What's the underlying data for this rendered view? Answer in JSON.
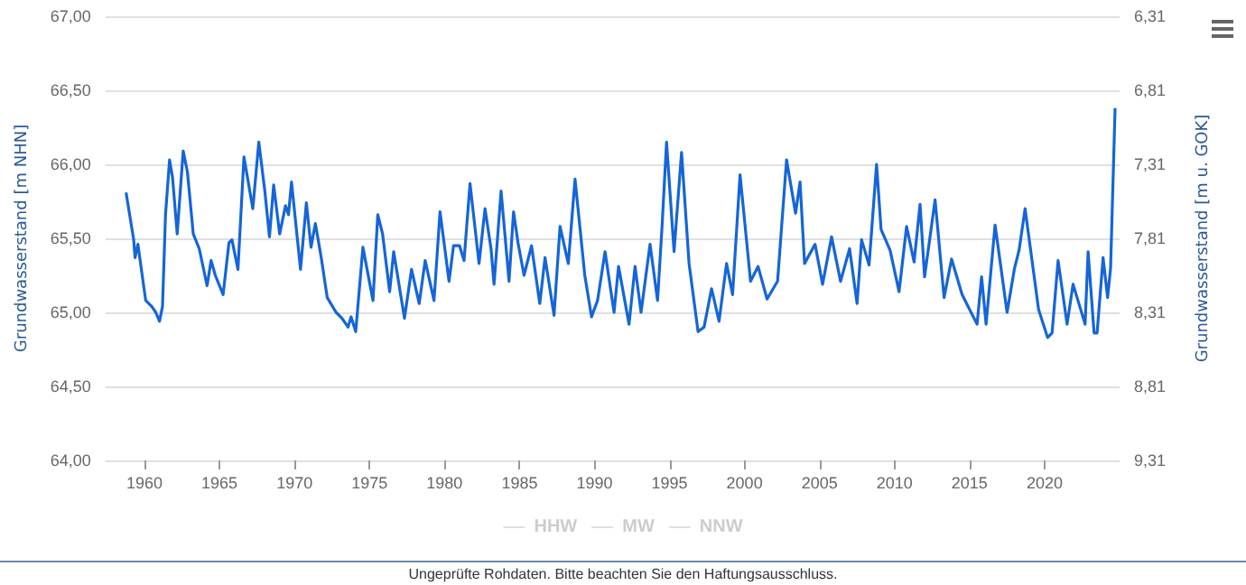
{
  "chart_data": {
    "type": "line",
    "ylabel": "Grundwasserstand [m NHN]",
    "y2label": "Grundwasserstand [m u. GOK]",
    "annotations": [
      "Ungeprüfte Rohdaten. Bitte beachten Sie den Haftungsausschluss."
    ],
    "xlim": [
      1957.4,
      2025
    ],
    "xticks": [
      1960,
      1965,
      1970,
      1975,
      1980,
      1985,
      1990,
      1995,
      2000,
      2005,
      2010,
      2015,
      2020
    ],
    "ylim": [
      64,
      67
    ],
    "yticks": [
      {
        "value": 64,
        "label": "64,00"
      },
      {
        "value": 64.5,
        "label": "64,50"
      },
      {
        "value": 65,
        "label": "65,00"
      },
      {
        "value": 65.5,
        "label": "65,50"
      },
      {
        "value": 66,
        "label": "66,00"
      },
      {
        "value": 66.5,
        "label": "66,50"
      },
      {
        "value": 67,
        "label": "67,00"
      }
    ],
    "y2lim": [
      9.31,
      6.31
    ],
    "y2ticks": [
      {
        "value": 9.31,
        "label": "9,31"
      },
      {
        "value": 8.81,
        "label": "8,81"
      },
      {
        "value": 8.31,
        "label": "8,31"
      },
      {
        "value": 7.81,
        "label": "7,81"
      },
      {
        "value": 7.31,
        "label": "7,31"
      },
      {
        "value": 6.81,
        "label": "6,81"
      },
      {
        "value": 6.31,
        "label": "6,31"
      }
    ],
    "grid": "y",
    "legend": "bottom",
    "marker": "none",
    "line_style": "solid",
    "series": [
      {
        "color": "#1565d8",
        "x": [
          1958.77,
          1959.28,
          1959.37,
          1959.56,
          1960.08,
          1960.48,
          1960.75,
          1961.0,
          1961.2,
          1961.4,
          1961.67,
          1961.87,
          1962.18,
          1962.58,
          1962.86,
          1963.25,
          1963.65,
          1964.17,
          1964.44,
          1964.72,
          1965.24,
          1965.63,
          1965.83,
          1966.23,
          1966.63,
          1967.22,
          1967.62,
          1968.02,
          1968.33,
          1968.61,
          1969.01,
          1969.4,
          1969.6,
          1969.8,
          1970.4,
          1970.79,
          1971.1,
          1971.39,
          1971.78,
          1972.18,
          1972.77,
          1973.17,
          1973.57,
          1973.77,
          1974.08,
          1974.56,
          1975.23,
          1975.55,
          1975.87,
          1976.34,
          1976.61,
          1977.33,
          1977.8,
          1978.31,
          1978.71,
          1979.3,
          1979.7,
          1980.3,
          1980.6,
          1981.0,
          1981.3,
          1981.7,
          1982.3,
          1982.7,
          1983.1,
          1983.3,
          1983.77,
          1984.3,
          1984.6,
          1984.9,
          1985.3,
          1985.8,
          1986.35,
          1986.7,
          1987.3,
          1987.7,
          1988.25,
          1988.7,
          1989.35,
          1989.8,
          1990.2,
          1990.7,
          1991.3,
          1991.6,
          1992.3,
          1992.7,
          1993.1,
          1993.7,
          1994.2,
          1994.5,
          1994.8,
          1995.3,
          1995.8,
          1996.3,
          1996.9,
          1997.3,
          1997.8,
          1998.3,
          1998.8,
          1999.2,
          1999.7,
          2000.4,
          2000.9,
          2001.5,
          2002.2,
          2002.8,
          2003.4,
          2003.7,
          2004.0,
          2004.7,
          2005.2,
          2005.8,
          2006.4,
          2007.0,
          2007.5,
          2007.8,
          2008.3,
          2008.8,
          2009.1,
          2009.7,
          2010.3,
          2010.8,
          2011.3,
          2011.7,
          2012.0,
          2012.7,
          2013.3,
          2013.8,
          2014.5,
          2015.0,
          2015.5,
          2015.8,
          2016.1,
          2016.7,
          2017.5,
          2018.0,
          2018.3,
          2018.7,
          2019.6,
          2020.2,
          2020.5,
          2020.9,
          2021.5,
          2021.9,
          2022.7,
          2022.9,
          2023.3,
          2023.5,
          2023.9,
          2024.2,
          2024.4,
          2024.7
        ],
        "values": [
          65.81,
          65.49,
          65.37,
          65.46,
          65.08,
          65.04,
          65.0,
          64.94,
          65.04,
          65.66,
          66.03,
          65.91,
          65.53,
          66.09,
          65.95,
          65.53,
          65.43,
          65.18,
          65.35,
          65.25,
          65.12,
          65.47,
          65.49,
          65.29,
          66.05,
          65.7,
          66.15,
          65.82,
          65.51,
          65.86,
          65.53,
          65.72,
          65.66,
          65.88,
          65.29,
          65.74,
          65.44,
          65.6,
          65.37,
          65.1,
          65.0,
          64.96,
          64.9,
          64.97,
          64.87,
          65.44,
          65.08,
          65.66,
          65.53,
          65.14,
          65.41,
          64.96,
          65.29,
          65.06,
          65.35,
          65.08,
          65.68,
          65.21,
          65.45,
          65.45,
          65.35,
          65.87,
          65.33,
          65.7,
          65.43,
          65.19,
          65.82,
          65.21,
          65.68,
          65.47,
          65.25,
          65.45,
          65.06,
          65.37,
          64.98,
          65.58,
          65.33,
          65.9,
          65.25,
          64.97,
          65.08,
          65.41,
          65.0,
          65.31,
          64.92,
          65.31,
          65.0,
          65.46,
          65.08,
          65.58,
          66.15,
          65.41,
          66.08,
          65.33,
          64.87,
          64.9,
          65.16,
          64.94,
          65.33,
          65.12,
          65.93,
          65.21,
          65.31,
          65.09,
          65.21,
          66.03,
          65.67,
          65.88,
          65.33,
          65.46,
          65.19,
          65.51,
          65.21,
          65.43,
          65.06,
          65.49,
          65.32,
          66.0,
          65.56,
          65.42,
          65.14,
          65.58,
          65.34,
          65.73,
          65.24,
          65.76,
          65.1,
          65.36,
          65.12,
          65.02,
          64.92,
          65.24,
          64.92,
          65.59,
          65.0,
          65.3,
          65.42,
          65.7,
          65.02,
          64.83,
          64.86,
          65.35,
          64.92,
          65.19,
          64.92,
          65.41,
          64.86,
          64.86,
          65.37,
          65.1,
          65.3,
          66.38
        ]
      },
      {
        "name": "HHW",
        "color": "#cccccc"
      },
      {
        "name": "MW",
        "color": "#cccccc"
      },
      {
        "name": "NNW",
        "color": "#cccccc"
      }
    ]
  }
}
